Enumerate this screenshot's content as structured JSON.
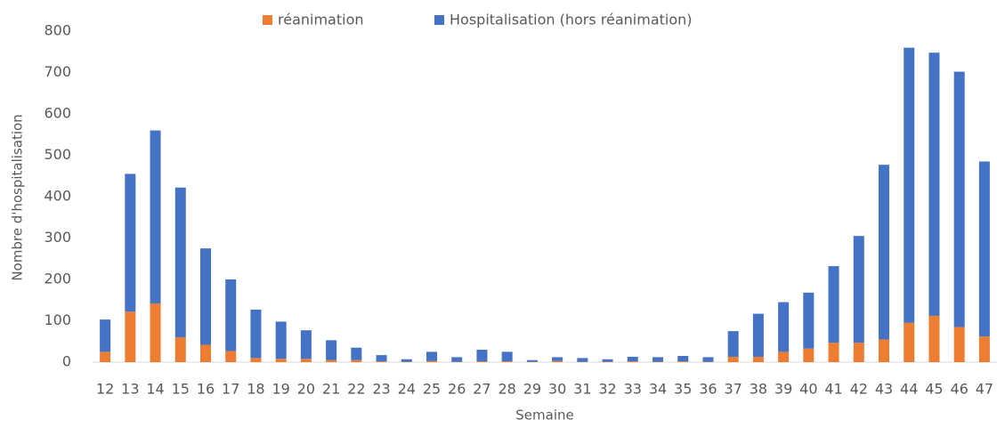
{
  "chart_data": {
    "type": "stacked_bar",
    "x_label": "Semaine",
    "y_label": "Nombre d'hospitalisation",
    "categories": [
      "12",
      "13",
      "14",
      "15",
      "16",
      "17",
      "18",
      "19",
      "20",
      "21",
      "22",
      "23",
      "24",
      "25",
      "26",
      "27",
      "28",
      "29",
      "30",
      "31",
      "32",
      "33",
      "34",
      "35",
      "36",
      "37",
      "38",
      "39",
      "40",
      "41",
      "42",
      "43",
      "44",
      "45",
      "46",
      "47"
    ],
    "series": [
      {
        "name": "réanimation",
        "color": "#ed7d31",
        "values": [
          25,
          122,
          142,
          60,
          42,
          27,
          10,
          8,
          8,
          5,
          5,
          2,
          1,
          3,
          1,
          2,
          2,
          1,
          3,
          1,
          1,
          2,
          1,
          2,
          1,
          13,
          13,
          25,
          33,
          47,
          47,
          55,
          95,
          112,
          85,
          62
        ]
      },
      {
        "name": "Hospitalisation (hors réanimation)",
        "color": "#4472c4",
        "values": [
          78,
          333,
          418,
          362,
          233,
          173,
          117,
          90,
          69,
          48,
          30,
          15,
          6,
          22,
          11,
          28,
          23,
          4,
          9,
          9,
          6,
          11,
          11,
          13,
          11,
          62,
          104,
          120,
          135,
          185,
          258,
          422,
          665,
          636,
          617,
          423
        ]
      }
    ],
    "ylim": [
      0,
      800
    ],
    "yticks": [
      0,
      100,
      200,
      300,
      400,
      500,
      600,
      700,
      800
    ],
    "grid": false,
    "legend": "top"
  }
}
